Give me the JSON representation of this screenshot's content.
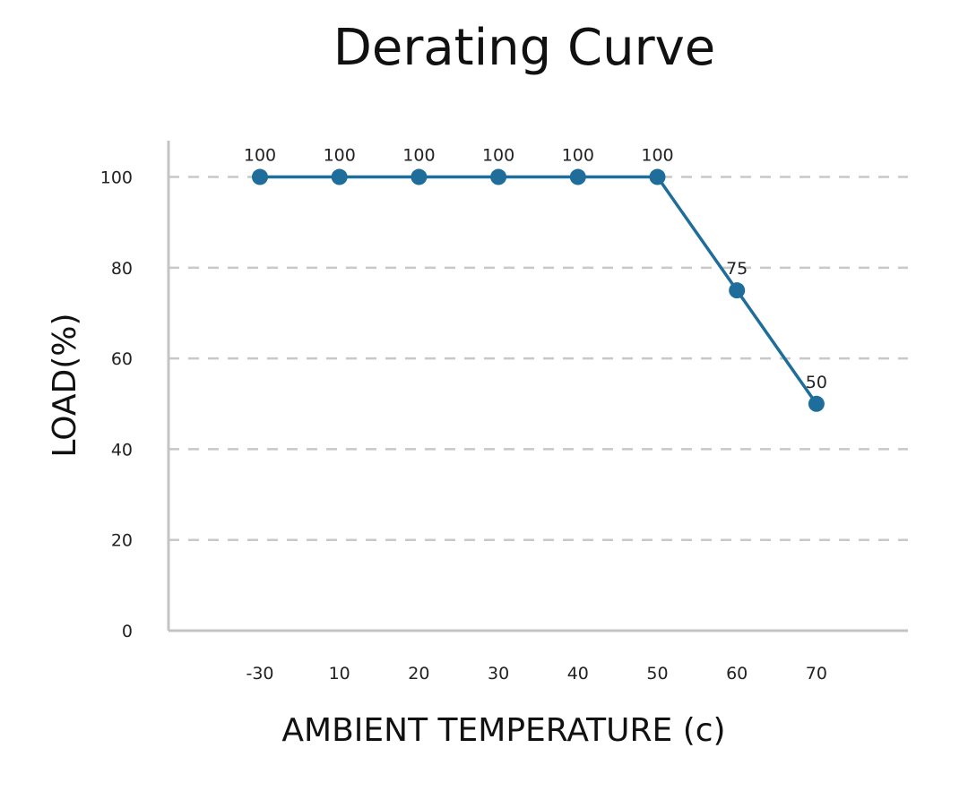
{
  "chart_data": {
    "type": "line",
    "title": "Derating Curve",
    "xlabel": "AMBIENT TEMPERATURE (c)",
    "ylabel": "LOAD(%)",
    "categories": [
      "-30",
      "10",
      "20",
      "30",
      "40",
      "50",
      "60",
      "70"
    ],
    "values": [
      100,
      100,
      100,
      100,
      100,
      100,
      75,
      50
    ],
    "data_labels": [
      "100",
      "100",
      "100",
      "100",
      "100",
      "100",
      "75",
      "50"
    ],
    "yticks": [
      "0",
      "20",
      "40",
      "60",
      "80",
      "100"
    ],
    "ylim": [
      0,
      108
    ],
    "grid": "horizontal dashed",
    "colors": {
      "series": "#1f6d9b",
      "grid": "#c8c8c8",
      "axis": "#c4c4c4"
    }
  }
}
